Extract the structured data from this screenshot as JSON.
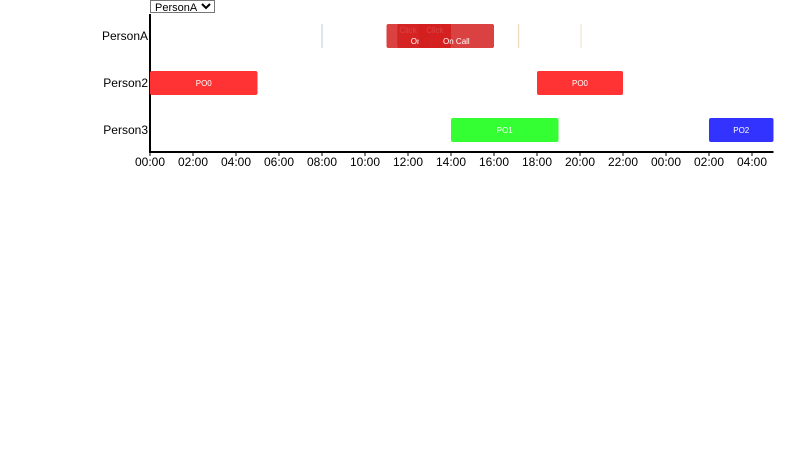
{
  "selector": {
    "selected": "PersonA",
    "options": [
      "PersonA"
    ]
  },
  "chart_data": {
    "type": "timeline",
    "rows": [
      "PersonA",
      "Person2",
      "Person3"
    ],
    "x_ticks": [
      "00:00",
      "02:00",
      "04:00",
      "06:00",
      "08:00",
      "10:00",
      "12:00",
      "14:00",
      "16:00",
      "18:00",
      "20:00",
      "22:00",
      "00:00",
      "02:00",
      "04:00"
    ],
    "x_range_hours": [
      0,
      29
    ],
    "events": [
      {
        "row": "PersonA",
        "label": "Click",
        "start_hour": 11,
        "end_hour": 13,
        "color": "#d42020"
      },
      {
        "row": "PersonA",
        "label": "On Call",
        "start_hour": 11.5,
        "end_hour": 14,
        "color": "#d42020"
      },
      {
        "row": "PersonA",
        "label": "Click",
        "start_hour": 12.5,
        "end_hour": 14,
        "color": "#d42020"
      },
      {
        "row": "PersonA",
        "label": "On Call",
        "start_hour": 12.5,
        "end_hour": 16,
        "color": "#d42020"
      },
      {
        "row": "Person2",
        "label": "PO0",
        "start_hour": 0,
        "end_hour": 5,
        "color": "#ff3333"
      },
      {
        "row": "Person2",
        "label": "PO0",
        "start_hour": 18,
        "end_hour": 22,
        "color": "#ff3333"
      },
      {
        "row": "Person3",
        "label": "PO1",
        "start_hour": 14,
        "end_hour": 19,
        "color": "#33ff33"
      },
      {
        "row": "Person3",
        "label": "PO2",
        "start_hour": 26,
        "end_hour": 29,
        "color": "#3333ff"
      }
    ],
    "markers": [
      {
        "row": "PersonA",
        "hour": 8,
        "color": "#b8cde0"
      },
      {
        "row": "PersonA",
        "hour": 17.15,
        "color": "#e8d2b0"
      },
      {
        "row": "PersonA",
        "hour": 20.05,
        "color": "#f0e0c0"
      }
    ]
  }
}
